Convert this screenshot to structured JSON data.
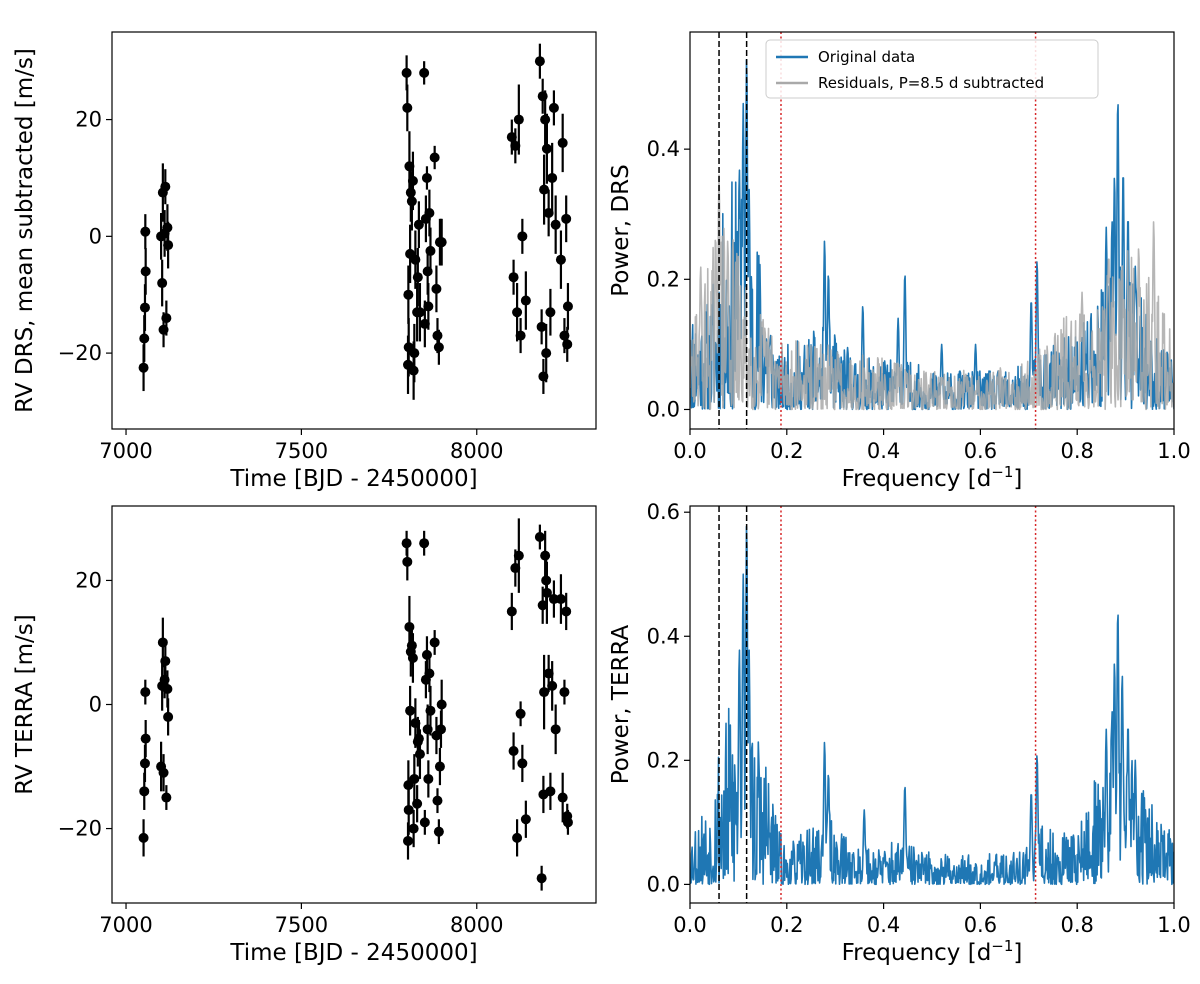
{
  "figure": {
    "colors": {
      "original": "#1f77b4",
      "residuals": "#a9a9a9",
      "points": "#000000",
      "black_vline": "#000000",
      "red_vline": "#d62728"
    }
  },
  "chart_data": [
    {
      "id": "rv-drs",
      "type": "scatter",
      "title": "",
      "xlabel": "Time [BJD - 2450000]",
      "ylabel": "RV DRS, mean subtracted [m/s]",
      "xlim": [
        6960,
        8340
      ],
      "ylim": [
        -33,
        35
      ],
      "xticks": [
        7000,
        7500,
        8000
      ],
      "yticks": [
        -20,
        0,
        20
      ],
      "xtick_labels": [
        "7000",
        "7500",
        "8000"
      ],
      "ytick_labels": [
        "−20",
        "0",
        "20"
      ],
      "series": [
        {
          "name": "RV DRS",
          "x": [
            7050,
            7052,
            7054,
            7055,
            7056,
            7100,
            7103,
            7105,
            7107,
            7110,
            7112,
            7115,
            7118,
            7120,
            7800,
            7802,
            7804,
            7805,
            7806,
            7808,
            7810,
            7812,
            7815,
            7818,
            7820,
            7822,
            7825,
            7830,
            7832,
            7835,
            7838,
            7850,
            7852,
            7855,
            7858,
            7860,
            7862,
            7865,
            7868,
            7880,
            7885,
            7888,
            7892,
            7895,
            7898,
            7900,
            8100,
            8105,
            8110,
            8115,
            8120,
            8125,
            8130,
            8140,
            8180,
            8185,
            8188,
            8190,
            8192,
            8195,
            8198,
            8200,
            8205,
            8210,
            8215,
            8220,
            8225,
            8240,
            8245,
            8250,
            8255,
            8258,
            8260
          ],
          "y": [
            -22.5,
            -17.5,
            -12.2,
            0.8,
            -6.0,
            0.0,
            -8.0,
            7.5,
            -16.0,
            0.5,
            8.5,
            -14.0,
            1.5,
            -1.5,
            28.0,
            22.0,
            -22.0,
            -10.0,
            -19.0,
            12.0,
            -3.0,
            7.5,
            6.0,
            9.5,
            -23.0,
            -20.0,
            -4.0,
            -13.0,
            -7.0,
            2.0,
            -13.0,
            28.0,
            -15.0,
            3.0,
            10.0,
            -6.0,
            -12.0,
            4.0,
            -2.5,
            13.5,
            -9.0,
            -17.0,
            -19.0,
            -1.0,
            -1.0,
            -1.0,
            17.0,
            -7.0,
            15.5,
            -13.0,
            20.0,
            -17.0,
            0.0,
            -11.0,
            30.0,
            -15.5,
            24.0,
            -24.0,
            8.0,
            20.0,
            -20.0,
            15.0,
            4.0,
            -13.0,
            10.0,
            22.0,
            2.0,
            -4.0,
            16.0,
            -17.0,
            3.0,
            -18.5,
            -12.0
          ],
          "err": [
            4,
            4,
            4,
            3,
            4,
            4,
            4,
            5,
            3,
            4,
            3,
            3,
            4,
            4,
            3,
            4,
            5,
            5,
            5,
            6,
            5,
            5,
            5,
            5,
            5,
            5,
            5,
            5,
            5,
            4,
            5,
            2,
            4,
            4,
            2,
            4,
            4,
            4,
            4,
            2,
            4,
            3,
            3,
            4,
            4,
            4,
            3,
            3,
            3,
            5,
            6,
            3,
            3,
            5,
            3,
            3,
            3,
            3,
            6,
            5,
            5,
            6,
            4,
            4,
            6,
            3,
            5,
            5,
            5,
            3,
            4,
            3,
            4
          ]
        }
      ]
    },
    {
      "id": "periodogram-drs",
      "type": "line",
      "title": "",
      "xlabel": "Frequency [d",
      "xlabel_sup": "−1",
      "xlabel_end": "]",
      "ylabel": "Power, DRS",
      "xlim": [
        0.0,
        1.0
      ],
      "ylim": [
        -0.03,
        0.58
      ],
      "xticks": [
        0.0,
        0.2,
        0.4,
        0.6,
        0.8,
        1.0
      ],
      "yticks": [
        0.0,
        0.2,
        0.4
      ],
      "xtick_labels": [
        "0.0",
        "0.2",
        "0.4",
        "0.6",
        "0.8",
        "1.0"
      ],
      "ytick_labels": [
        "0.0",
        "0.2",
        "0.4"
      ],
      "vlines_black": [
        0.06,
        0.117
      ],
      "vlines_red": [
        0.188,
        0.714
      ],
      "legend": {
        "location": "top-center",
        "entries": [
          "Original data",
          "Residuals, P=8.5 d subtracted"
        ]
      },
      "series": [
        {
          "name": "Original data",
          "noise_seed": 11,
          "envelope": [
            [
              0.0,
              0.17
            ],
            [
              0.04,
              0.17
            ],
            [
              0.06,
              0.28
            ],
            [
              0.09,
              0.37
            ],
            [
              0.11,
              0.34
            ],
            [
              0.13,
              0.3
            ],
            [
              0.16,
              0.22
            ],
            [
              0.18,
              0.08
            ],
            [
              0.2,
              0.1
            ],
            [
              0.28,
              0.13
            ],
            [
              0.35,
              0.08
            ],
            [
              0.44,
              0.08
            ],
            [
              0.5,
              0.06
            ],
            [
              0.58,
              0.06
            ],
            [
              0.64,
              0.06
            ],
            [
              0.7,
              0.07
            ],
            [
              0.73,
              0.11
            ],
            [
              0.76,
              0.1
            ],
            [
              0.8,
              0.13
            ],
            [
              0.85,
              0.22
            ],
            [
              0.88,
              0.26
            ],
            [
              0.92,
              0.2
            ],
            [
              0.96,
              0.12
            ],
            [
              1.0,
              0.09
            ]
          ],
          "peaks": [
            [
              0.117,
              0.545
            ],
            [
              0.11,
              0.47
            ],
            [
              0.122,
              0.34
            ],
            [
              0.102,
              0.37
            ],
            [
              0.278,
              0.26
            ],
            [
              0.286,
              0.21
            ],
            [
              0.357,
              0.16
            ],
            [
              0.43,
              0.14
            ],
            [
              0.444,
              0.21
            ],
            [
              0.52,
              0.1
            ],
            [
              0.59,
              0.1
            ],
            [
              0.705,
              0.17
            ],
            [
              0.717,
              0.23
            ],
            [
              0.884,
              0.48
            ],
            [
              0.877,
              0.36
            ],
            [
              0.895,
              0.37
            ],
            [
              0.872,
              0.29
            ],
            [
              0.905,
              0.3
            ],
            [
              0.86,
              0.28
            ],
            [
              0.92,
              0.22
            ],
            [
              0.986,
              0.09
            ]
          ]
        },
        {
          "name": "Residuals, P=8.5 d subtracted",
          "noise_seed": 29,
          "envelope": [
            [
              0.0,
              0.12
            ],
            [
              0.04,
              0.24
            ],
            [
              0.06,
              0.31
            ],
            [
              0.09,
              0.27
            ],
            [
              0.12,
              0.2
            ],
            [
              0.16,
              0.14
            ],
            [
              0.2,
              0.11
            ],
            [
              0.3,
              0.1
            ],
            [
              0.4,
              0.08
            ],
            [
              0.5,
              0.06
            ],
            [
              0.6,
              0.06
            ],
            [
              0.7,
              0.08
            ],
            [
              0.75,
              0.12
            ],
            [
              0.8,
              0.17
            ],
            [
              0.85,
              0.2
            ],
            [
              0.9,
              0.25
            ],
            [
              0.95,
              0.21
            ],
            [
              1.0,
              0.12
            ]
          ],
          "peaks": [
            [
              0.06,
              0.36
            ],
            [
              0.022,
              0.22
            ],
            [
              0.078,
              0.26
            ],
            [
              0.958,
              0.29
            ],
            [
              0.927,
              0.25
            ],
            [
              0.865,
              0.24
            ],
            [
              0.81,
              0.18
            ]
          ]
        }
      ]
    },
    {
      "id": "rv-terra",
      "type": "scatter",
      "title": "",
      "xlabel": "Time [BJD - 2450000]",
      "ylabel": "RV TERRA [m/s]",
      "xlim": [
        6960,
        8340
      ],
      "ylim": [
        -32,
        32
      ],
      "xticks": [
        7000,
        7500,
        8000
      ],
      "yticks": [
        -20,
        0,
        20
      ],
      "xtick_labels": [
        "7000",
        "7500",
        "8000"
      ],
      "ytick_labels": [
        "−20",
        "0",
        "20"
      ],
      "series": [
        {
          "name": "RV TERRA",
          "x": [
            7050,
            7052,
            7054,
            7055,
            7056,
            7100,
            7103,
            7105,
            7107,
            7110,
            7112,
            7115,
            7118,
            7120,
            7800,
            7802,
            7804,
            7805,
            7806,
            7808,
            7810,
            7812,
            7815,
            7818,
            7820,
            7822,
            7825,
            7830,
            7832,
            7835,
            7838,
            7850,
            7852,
            7855,
            7858,
            7860,
            7862,
            7865,
            7868,
            7880,
            7885,
            7888,
            7892,
            7895,
            7898,
            7900,
            8100,
            8105,
            8110,
            8115,
            8120,
            8125,
            8130,
            8140,
            8180,
            8185,
            8188,
            8190,
            8192,
            8195,
            8198,
            8200,
            8205,
            8210,
            8215,
            8220,
            8225,
            8240,
            8245,
            8250,
            8255,
            8258,
            8260
          ],
          "y": [
            -21.5,
            -14.0,
            -9.5,
            2.0,
            -5.5,
            -10.0,
            3.0,
            10.0,
            -11.0,
            4.0,
            7.0,
            -15.0,
            2.5,
            -2.0,
            26.0,
            23.0,
            -22.0,
            -13.0,
            -17.0,
            12.5,
            -1.0,
            8.5,
            9.5,
            7.5,
            -20.0,
            -12.0,
            -3.0,
            -16.0,
            -6.0,
            -5.5,
            -8.0,
            26.0,
            -19.0,
            4.0,
            8.0,
            -4.0,
            -12.0,
            5.0,
            -1.0,
            10.0,
            -5.0,
            -15.5,
            -20.5,
            -10.0,
            -4.0,
            0.0,
            15.0,
            -7.5,
            22.0,
            -21.5,
            24.0,
            -1.5,
            -9.5,
            -18.5,
            27.0,
            -28.0,
            16.0,
            -14.5,
            2.0,
            24.0,
            20.0,
            18.0,
            5.0,
            -14.0,
            3.0,
            17.0,
            -4.0,
            17.0,
            -15.0,
            2.0,
            15.0,
            -18.0,
            -19.0
          ],
          "err": [
            3,
            3,
            3,
            2,
            3,
            4,
            4,
            4,
            3,
            3,
            3,
            2,
            3,
            3,
            2,
            3,
            3,
            4,
            4,
            5,
            4,
            4,
            3,
            4,
            3,
            4,
            4,
            3,
            4,
            3,
            4,
            2,
            2,
            3,
            3,
            4,
            3,
            3,
            4,
            2,
            3,
            2,
            2,
            3,
            3,
            4,
            3,
            3,
            3,
            3,
            6,
            2,
            3,
            3,
            2,
            2,
            3,
            3,
            6,
            4,
            4,
            5,
            3,
            3,
            4,
            3,
            4,
            4,
            4,
            2,
            3,
            2,
            2
          ]
        }
      ]
    },
    {
      "id": "periodogram-terra",
      "type": "line",
      "title": "",
      "xlabel": "Frequency [d",
      "xlabel_sup": "−1",
      "xlabel_end": "]",
      "ylabel": "Power, TERRA",
      "xlim": [
        0.0,
        1.0
      ],
      "ylim": [
        -0.03,
        0.61
      ],
      "xticks": [
        0.0,
        0.2,
        0.4,
        0.6,
        0.8,
        1.0
      ],
      "yticks": [
        0.0,
        0.2,
        0.4,
        0.6
      ],
      "xtick_labels": [
        "0.0",
        "0.2",
        "0.4",
        "0.6",
        "0.8",
        "1.0"
      ],
      "ytick_labels": [
        "0.0",
        "0.2",
        "0.4",
        "0.6"
      ],
      "vlines_black": [
        0.06,
        0.117
      ],
      "vlines_red": [
        0.188,
        0.714
      ],
      "series": [
        {
          "name": "Original data",
          "noise_seed": 53,
          "envelope": [
            [
              0.0,
              0.1
            ],
            [
              0.04,
              0.14
            ],
            [
              0.06,
              0.26
            ],
            [
              0.09,
              0.3
            ],
            [
              0.11,
              0.3
            ],
            [
              0.13,
              0.28
            ],
            [
              0.16,
              0.22
            ],
            [
              0.18,
              0.1
            ],
            [
              0.2,
              0.06
            ],
            [
              0.28,
              0.12
            ],
            [
              0.35,
              0.06
            ],
            [
              0.44,
              0.07
            ],
            [
              0.5,
              0.05
            ],
            [
              0.58,
              0.05
            ],
            [
              0.64,
              0.05
            ],
            [
              0.7,
              0.07
            ],
            [
              0.73,
              0.1
            ],
            [
              0.76,
              0.08
            ],
            [
              0.8,
              0.1
            ],
            [
              0.85,
              0.2
            ],
            [
              0.88,
              0.26
            ],
            [
              0.92,
              0.2
            ],
            [
              0.96,
              0.12
            ],
            [
              1.0,
              0.08
            ]
          ],
          "peaks": [
            [
              0.117,
              0.585
            ],
            [
              0.11,
              0.5
            ],
            [
              0.122,
              0.38
            ],
            [
              0.102,
              0.38
            ],
            [
              0.278,
              0.23
            ],
            [
              0.286,
              0.18
            ],
            [
              0.444,
              0.16
            ],
            [
              0.36,
              0.12
            ],
            [
              0.717,
              0.21
            ],
            [
              0.705,
              0.15
            ],
            [
              0.884,
              0.445
            ],
            [
              0.877,
              0.36
            ],
            [
              0.893,
              0.34
            ],
            [
              0.872,
              0.28
            ],
            [
              0.905,
              0.26
            ],
            [
              0.86,
              0.25
            ],
            [
              0.92,
              0.2
            ]
          ]
        }
      ]
    }
  ]
}
